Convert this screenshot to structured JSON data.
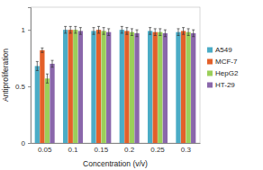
{
  "chart_data": {
    "type": "bar",
    "x_label": "Concentration (v/v)",
    "y_label": "Antiproliferation",
    "categories": [
      "0.05",
      "0.1",
      "0.15",
      "0.2",
      "0.25",
      "0.3"
    ],
    "series": [
      {
        "name": "A549",
        "color": "#4bacc6",
        "values": [
          0.68,
          1.0,
          0.99,
          1.0,
          0.99,
          0.98
        ],
        "errors": [
          0.04,
          0.03,
          0.03,
          0.03,
          0.03,
          0.03
        ]
      },
      {
        "name": "MCF-7",
        "color": "#e3602a",
        "values": [
          0.82,
          1.0,
          1.0,
          0.99,
          0.98,
          0.99
        ],
        "errors": [
          0.02,
          0.03,
          0.03,
          0.03,
          0.03,
          0.03
        ]
      },
      {
        "name": "HepG2",
        "color": "#9bcf5a",
        "values": [
          0.57,
          1.0,
          0.99,
          0.98,
          0.98,
          0.98
        ],
        "errors": [
          0.04,
          0.03,
          0.03,
          0.03,
          0.03,
          0.03
        ]
      },
      {
        "name": "HT-29",
        "color": "#8a67ab",
        "values": [
          0.7,
          0.99,
          0.98,
          0.97,
          0.97,
          0.97
        ],
        "errors": [
          0.03,
          0.03,
          0.03,
          0.03,
          0.03,
          0.03
        ]
      }
    ],
    "ylim": [
      0,
      1.2
    ],
    "yticks": [
      0,
      0.5,
      1
    ],
    "grid": false,
    "legend": "right"
  }
}
